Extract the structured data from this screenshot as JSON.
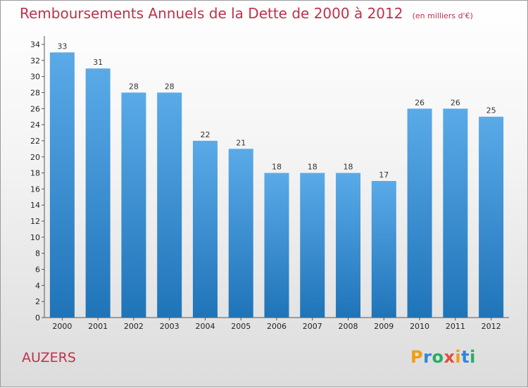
{
  "title": "Remboursements Annuels de la Dette de 2000 à 2012",
  "subtitle": "(en milliers d'€)",
  "commune": "AUZERS",
  "logo": {
    "letters": [
      "P",
      "r",
      "o",
      "x",
      "i",
      "t",
      "i"
    ],
    "colors": [
      "#f39c12",
      "#2e86de",
      "#27ae60",
      "#e74c3c",
      "#f39c12",
      "#2e86de",
      "#27ae60"
    ]
  },
  "colors": {
    "bar_light": "#5aaae8",
    "bar_dark": "#1f74b8",
    "title": "#c0304a"
  },
  "chart_data": {
    "type": "bar",
    "categories": [
      "2000",
      "2001",
      "2002",
      "2003",
      "2004",
      "2005",
      "2006",
      "2007",
      "2008",
      "2009",
      "2010",
      "2011",
      "2012"
    ],
    "values": [
      33,
      31,
      28,
      28,
      22,
      21,
      18,
      18,
      18,
      17,
      26,
      26,
      25
    ],
    "ylim": [
      0,
      34
    ],
    "yticks": [
      0,
      2,
      4,
      6,
      8,
      10,
      12,
      14,
      16,
      18,
      20,
      22,
      24,
      26,
      28,
      30,
      32,
      34
    ],
    "title": "Remboursements Annuels de la Dette de 2000 à 2012",
    "xlabel": "",
    "ylabel": "",
    "grid": false,
    "data_labels": true
  }
}
